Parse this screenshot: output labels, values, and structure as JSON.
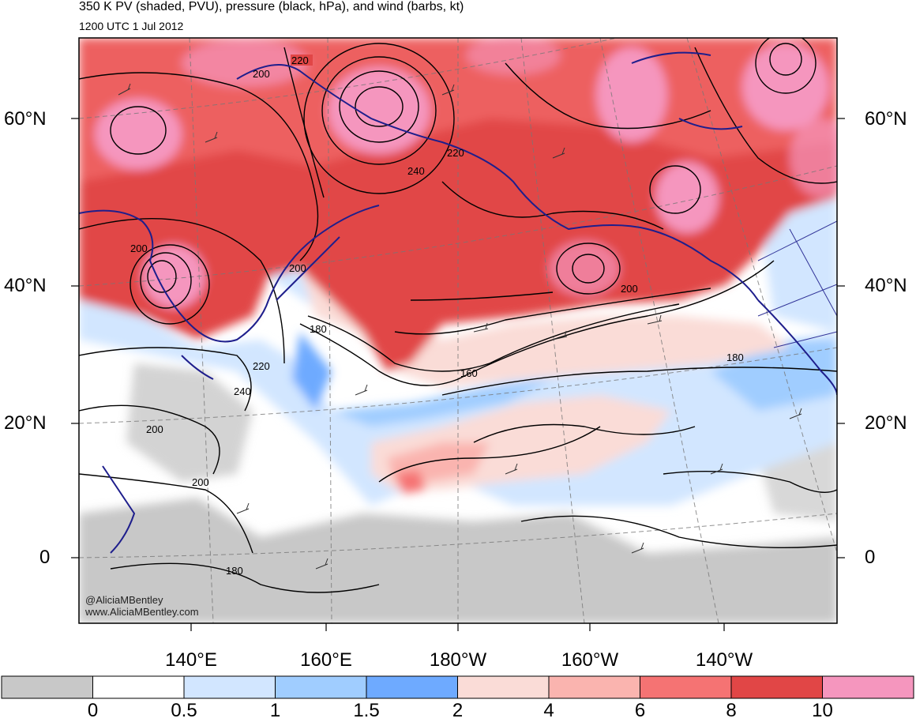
{
  "header": {
    "title": "350 K PV (shaded, PVU), pressure (black, hPa), and wind (barbs, kt)",
    "subtitle": "1200 UTC 1 Jul 2012"
  },
  "map": {
    "lat_labels": [
      {
        "label": "60°N",
        "lat": 60
      },
      {
        "label": "40°N",
        "lat": 40
      },
      {
        "label": "20°N",
        "lat": 20
      },
      {
        "label": "0",
        "lat": 0
      }
    ],
    "lon_labels": [
      "140°E",
      "160°E",
      "180°W",
      "160°W",
      "140°W"
    ],
    "contour_labels": [
      "220",
      "200",
      "220",
      "240",
      "200",
      "200",
      "180",
      "200",
      "160",
      "180",
      "220",
      "240",
      "200",
      "200",
      "180"
    ],
    "watermark": [
      "@AliciaMBentley",
      "www.AliciaMBentley.com"
    ],
    "colors": {
      "pv_0": "#c8c8c8",
      "pv_0_5": "#ffffff",
      "pv_1": "#d2e6ff",
      "pv_1_5": "#a0cdff",
      "pv_2": "#6eaaff",
      "pv_4": "#fadcd7",
      "pv_6": "#fab4af",
      "pv_8": "#f57373",
      "pv_10": "#e14646",
      "pv_high": "#f596be",
      "coast": "#1e1e8c",
      "contour": "#000000"
    }
  },
  "colorbar": {
    "colors": [
      "#c8c8c8",
      "#ffffff",
      "#d2e6ff",
      "#a0cdff",
      "#6eaaff",
      "#fadcd7",
      "#fab4af",
      "#f57373",
      "#e14646",
      "#f596be"
    ],
    "tick_labels": [
      "0",
      "0.5",
      "1",
      "1.5",
      "2",
      "4",
      "6",
      "8",
      "10"
    ]
  }
}
